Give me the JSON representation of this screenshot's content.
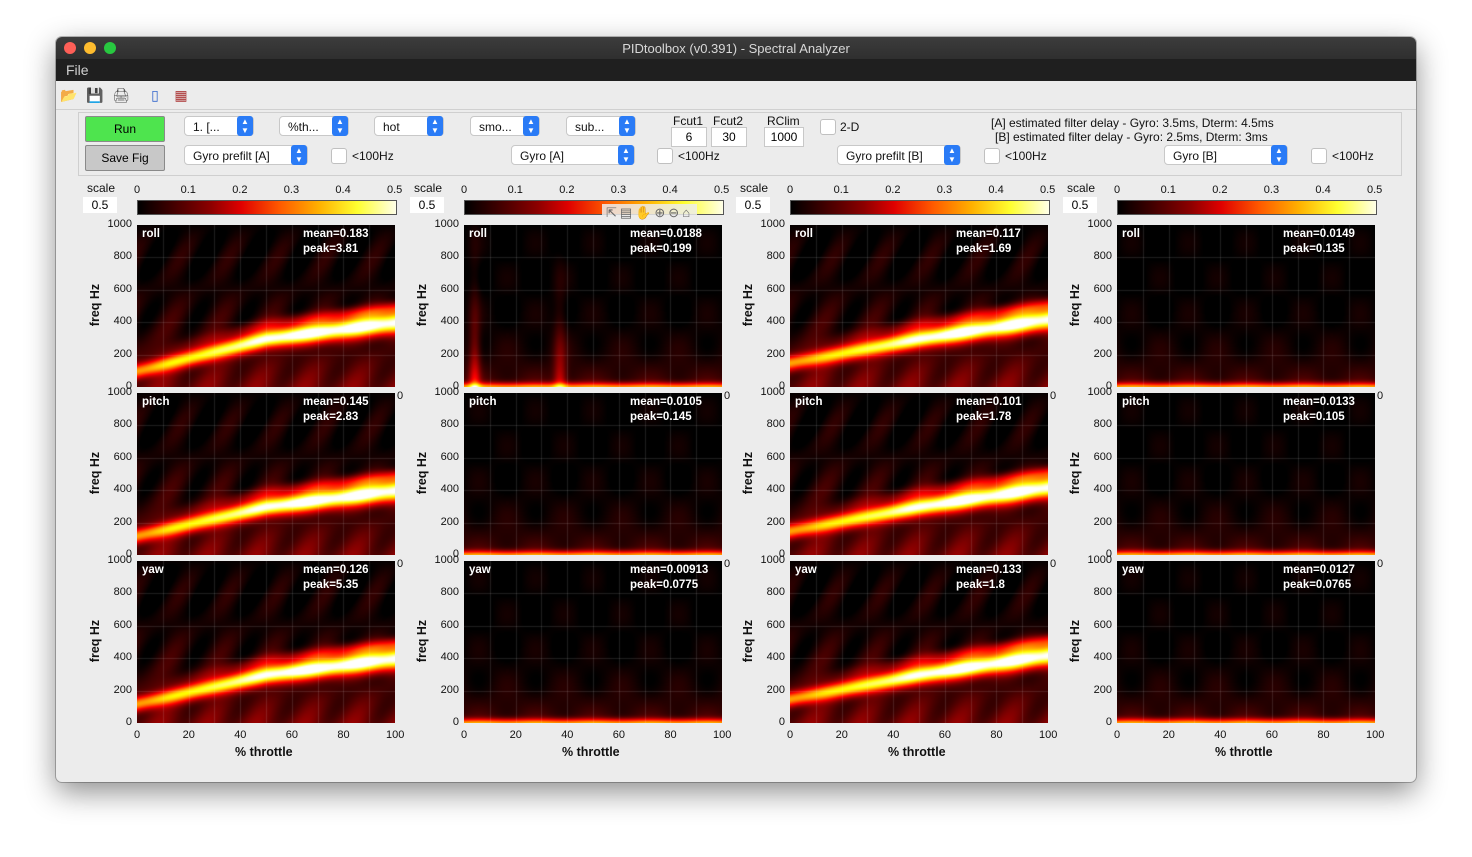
{
  "window": {
    "title": "PIDtoolbox (v0.391) - Spectral Analyzer",
    "menu_file": "File",
    "traffic_colors": [
      "#fe5f57",
      "#febc2e",
      "#28c840"
    ]
  },
  "toolbar_icons": [
    "open-folder-icon",
    "save-disk-icon",
    "print-icon",
    "doc-icon",
    "data-cursor-icon"
  ],
  "controls": {
    "run_label": "Run",
    "run_color": "#4ee44e",
    "savefig_label": "Save Fig",
    "row1_dropdowns": [
      "1. [...",
      "%th...",
      "hot",
      "smo...",
      "sub..."
    ],
    "fcut1_label": "Fcut1",
    "fcut1_value": "6",
    "fcut2_label": "Fcut2",
    "fcut2_value": "30",
    "rclim_label": "RClim",
    "rclim_value": "1000",
    "twod_label": "2-D",
    "filter_delay_a": "[A] estimated filter delay - Gyro: 3.5ms, Dterm: 4.5ms",
    "filter_delay_b": "[B] estimated filter delay - Gyro: 2.5ms, Dterm: 3ms",
    "row2_dropdowns": [
      "Gyro prefilt [A]",
      "Gyro [A]",
      "Gyro prefilt [B]",
      "Gyro [B]"
    ],
    "lt100_label": "<100Hz"
  },
  "figure": {
    "scale_label": "scale",
    "scale_value": "0.5",
    "colorbar_ticks": [
      "0",
      "0.1",
      "0.2",
      "0.3",
      "0.4",
      "0.5"
    ],
    "colormap": "hot",
    "ylabel": "freq Hz",
    "xlabel": "% throttle",
    "yticks": [
      "1000",
      "800",
      "600",
      "400",
      "200",
      "0"
    ],
    "xticks": [
      "0",
      "20",
      "40",
      "60",
      "80",
      "100"
    ],
    "stray_tick": "0",
    "fig_tool_icons": [
      "export-icon",
      "brush-icon",
      "pan-icon",
      "zoom-in-icon",
      "zoom-out-icon",
      "home-icon"
    ]
  },
  "chart_data": {
    "type": "heatmap",
    "xlabel": "% throttle",
    "ylabel": "freq Hz",
    "xlim": [
      0,
      100
    ],
    "ylim": [
      0,
      1000
    ],
    "clim": [
      0,
      0.5
    ],
    "colormap": "hot",
    "columns": [
      {
        "source": "Gyro prefilt [A]",
        "panels": [
          {
            "axis": "roll",
            "mean": "mean=0.183",
            "peak": "peak=3.81",
            "intensity": "high",
            "band": [
              [
                0,
                100
              ],
              [
                50,
                300
              ],
              [
                100,
                400
              ]
            ]
          },
          {
            "axis": "pitch",
            "mean": "mean=0.145",
            "peak": "peak=2.83",
            "intensity": "high",
            "band": [
              [
                0,
                120
              ],
              [
                50,
                300
              ],
              [
                100,
                400
              ]
            ]
          },
          {
            "axis": "yaw",
            "mean": "mean=0.126",
            "peak": "peak=5.35",
            "intensity": "high",
            "band": [
              [
                0,
                120
              ],
              [
                50,
                300
              ],
              [
                100,
                400
              ]
            ]
          }
        ]
      },
      {
        "source": "Gyro [A]",
        "panels": [
          {
            "axis": "roll",
            "mean": "mean=0.0188",
            "peak": "peak=0.199",
            "intensity": "low",
            "band": [
              [
                0,
                30
              ],
              [
                100,
                30
              ]
            ]
          },
          {
            "axis": "pitch",
            "mean": "mean=0.0105",
            "peak": "peak=0.145",
            "intensity": "low",
            "band": [
              [
                0,
                30
              ],
              [
                100,
                30
              ]
            ]
          },
          {
            "axis": "yaw",
            "mean": "mean=0.00913",
            "peak": "peak=0.0775",
            "intensity": "low",
            "band": [
              [
                0,
                30
              ],
              [
                100,
                30
              ]
            ]
          }
        ]
      },
      {
        "source": "Gyro prefilt [B]",
        "panels": [
          {
            "axis": "roll",
            "mean": "mean=0.117",
            "peak": "peak=1.69",
            "intensity": "high",
            "band": [
              [
                0,
                150
              ],
              [
                50,
                300
              ],
              [
                100,
                420
              ]
            ]
          },
          {
            "axis": "pitch",
            "mean": "mean=0.101",
            "peak": "peak=1.78",
            "intensity": "high",
            "band": [
              [
                0,
                150
              ],
              [
                50,
                300
              ],
              [
                100,
                420
              ]
            ]
          },
          {
            "axis": "yaw",
            "mean": "mean=0.133",
            "peak": "peak=1.8",
            "intensity": "high",
            "band": [
              [
                0,
                150
              ],
              [
                50,
                300
              ],
              [
                100,
                420
              ]
            ]
          }
        ]
      },
      {
        "source": "Gyro [B]",
        "panels": [
          {
            "axis": "roll",
            "mean": "mean=0.0149",
            "peak": "peak=0.135",
            "intensity": "low",
            "band": [
              [
                0,
                20
              ],
              [
                100,
                20
              ]
            ]
          },
          {
            "axis": "pitch",
            "mean": "mean=0.0133",
            "peak": "peak=0.105",
            "intensity": "low",
            "band": [
              [
                0,
                20
              ],
              [
                100,
                20
              ]
            ]
          },
          {
            "axis": "yaw",
            "mean": "mean=0.0127",
            "peak": "peak=0.0765",
            "intensity": "low",
            "band": [
              [
                0,
                20
              ],
              [
                100,
                20
              ]
            ]
          }
        ]
      }
    ]
  }
}
